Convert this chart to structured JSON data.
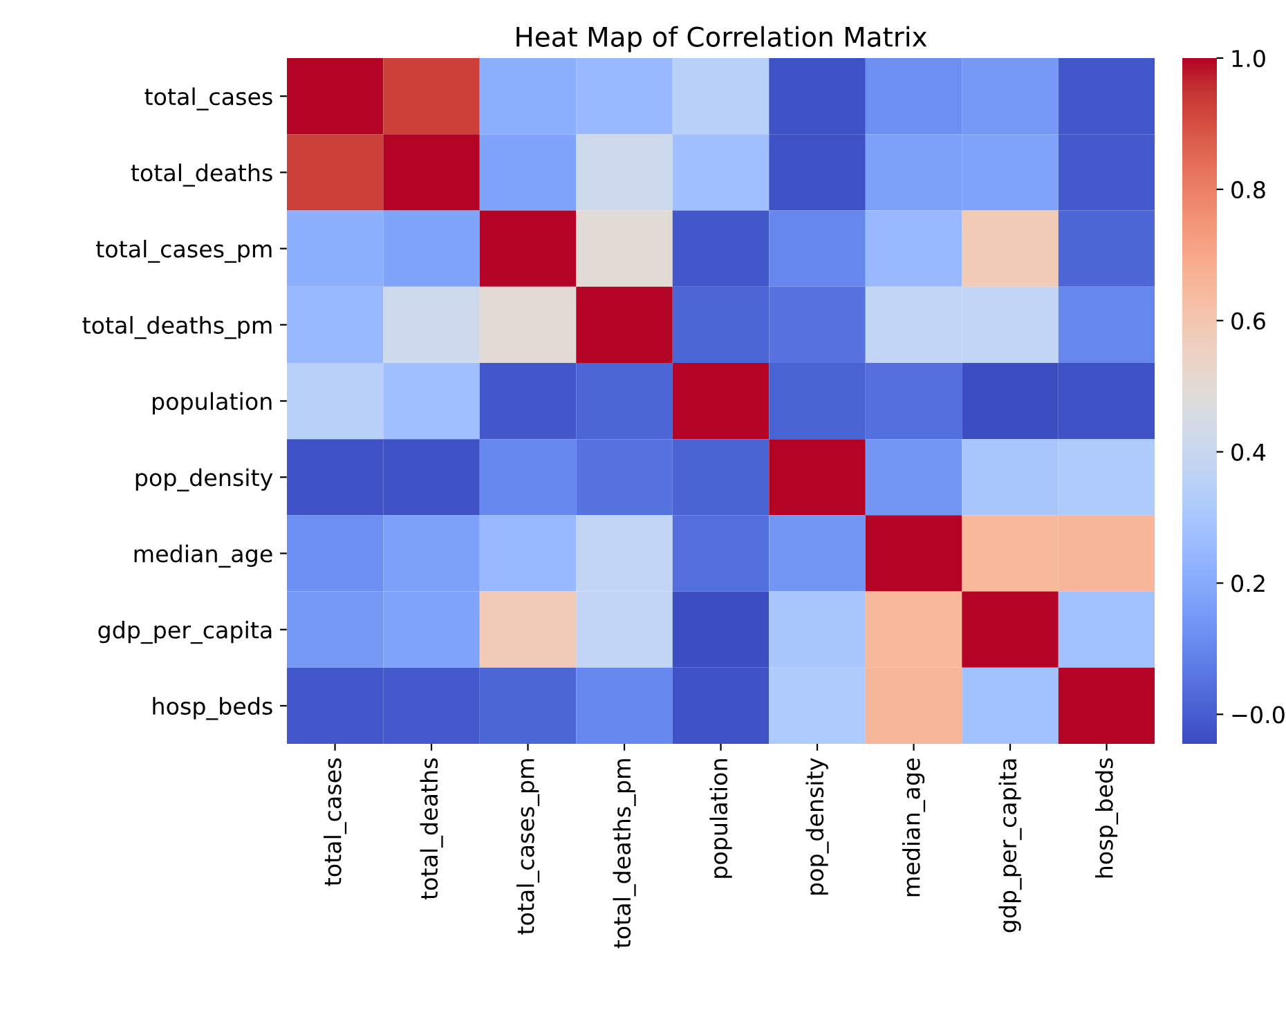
{
  "chart_data": {
    "type": "heatmap",
    "title": "Heat Map of Correlation Matrix",
    "categories": [
      "total_cases",
      "total_deaths",
      "total_cases_pm",
      "total_deaths_pm",
      "population",
      "pop_density",
      "median_age",
      "gdp_per_capita",
      "hosp_beds"
    ],
    "y_categories": [
      "total_cases",
      "total_deaths",
      "total_cases_pm",
      "total_deaths_pm",
      "population",
      "pop_density",
      "median_age",
      "gdp_per_capita",
      "hosp_beds"
    ],
    "cells": [
      [
        1,
        0.93,
        0.22,
        0.25,
        0.35,
        -0.03,
        0.12,
        0.15,
        -0.02
      ],
      [
        0.93,
        1,
        0.18,
        0.42,
        0.27,
        -0.03,
        0.17,
        0.18,
        -0.01
      ],
      [
        0.22,
        0.18,
        1,
        0.5,
        -0.02,
        0.1,
        0.25,
        0.58,
        0.02
      ],
      [
        0.25,
        0.42,
        0.5,
        1,
        0.02,
        0.05,
        0.38,
        0.38,
        0.1
      ],
      [
        0.35,
        0.27,
        -0.02,
        0.02,
        1,
        0.01,
        0.04,
        -0.04,
        -0.03
      ],
      [
        -0.03,
        -0.03,
        0.1,
        0.05,
        0.01,
        1,
        0.14,
        0.3,
        0.32
      ],
      [
        0.12,
        0.17,
        0.25,
        0.38,
        0.04,
        0.14,
        1,
        0.65,
        0.66
      ],
      [
        0.15,
        0.18,
        0.58,
        0.38,
        -0.04,
        0.3,
        0.65,
        1,
        0.28
      ],
      [
        -0.02,
        -0.01,
        0.02,
        0.1,
        -0.03,
        0.32,
        0.66,
        0.28,
        1
      ]
    ],
    "clim": [
      -0.045,
      1.0
    ],
    "cticks": [
      {
        "value": 0,
        "label": "−0.0"
      },
      0.2,
      0.4,
      0.6,
      0.8,
      {
        "value": 1,
        "label": "1.0"
      }
    ]
  }
}
